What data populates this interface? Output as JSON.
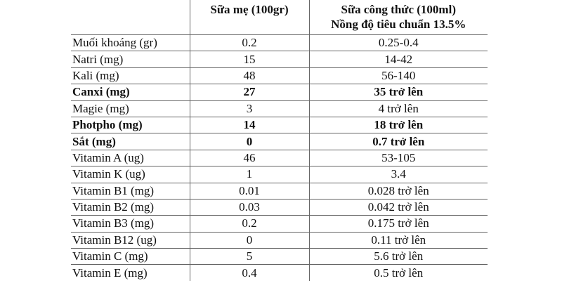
{
  "table": {
    "headers": {
      "col1": "",
      "col2": "Sữa mẹ (100gr)",
      "col3_line1": "Sữa công thức (100ml)",
      "col3_line2": "Nồng độ tiêu chuẩn 13.5%"
    },
    "rows": [
      {
        "name": "Muối khoáng (gr)",
        "breast_milk": "0.2",
        "formula": "0.25-0.4",
        "bold": false
      },
      {
        "name": "Natri (mg)",
        "breast_milk": "15",
        "formula": "14-42",
        "bold": false
      },
      {
        "name": "Kali (mg)",
        "breast_milk": "48",
        "formula": "56-140",
        "bold": false
      },
      {
        "name": "Canxi (mg)",
        "breast_milk": "27",
        "formula": "35 trở lên",
        "bold": true
      },
      {
        "name": "Magie (mg)",
        "breast_milk": "3",
        "formula": "4 trở lên",
        "bold": false
      },
      {
        "name": "Photpho (mg)",
        "breast_milk": "14",
        "formula": "18 trở lên",
        "bold": true
      },
      {
        "name": "Sắt (mg)",
        "breast_milk": "0",
        "formula": "0.7 trở lên",
        "bold": true
      },
      {
        "name": "Vitamin A (ug)",
        "breast_milk": "46",
        "formula": "53-105",
        "bold": false
      },
      {
        "name": "Vitamin K (ug)",
        "breast_milk": "1",
        "formula": "3.4",
        "bold": false
      },
      {
        "name": "Vitamin B1 (mg)",
        "breast_milk": "0.01",
        "formula": "0.028 trở lên",
        "bold": false
      },
      {
        "name": "Vitamin B2 (mg)",
        "breast_milk": "0.03",
        "formula": "0.042 trở lên",
        "bold": false
      },
      {
        "name": "Vitamin B3 (mg)",
        "breast_milk": "0.2",
        "formula": "0.175 trở lên",
        "bold": false
      },
      {
        "name": "Vitamin B12 (ug)",
        "breast_milk": "0",
        "formula": "0.11 trở lên",
        "bold": false
      },
      {
        "name": "Vitamin C (mg)",
        "breast_milk": "5",
        "formula": "5.6 trở lên",
        "bold": false
      },
      {
        "name": "Vitamin E (mg)",
        "breast_milk": "0.4",
        "formula": "0.5 trở lên",
        "bold": false
      }
    ]
  }
}
